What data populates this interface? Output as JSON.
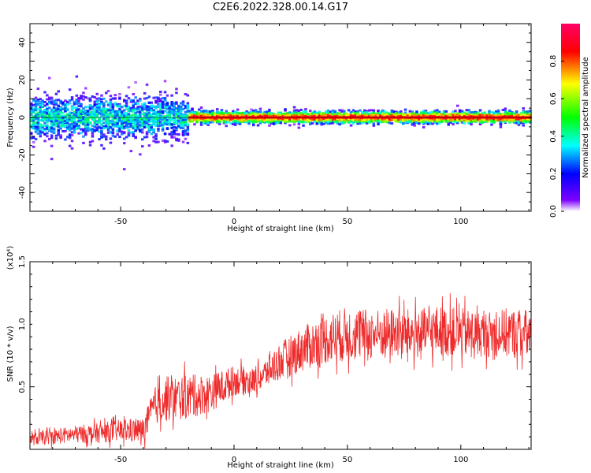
{
  "title": "C2E6.2022.328.00.14.G17",
  "colors": {
    "snr_line": "#ee2a2a",
    "axis": "#000000",
    "median_line": "#ff1a1a"
  },
  "chart_data": [
    {
      "type": "heatmap",
      "name": "frequency-spectrum",
      "xlabel": "Height of straight line (km)",
      "ylabel": "Frequency (Hz)",
      "xlim": [
        -90,
        131
      ],
      "ylim": [
        -50,
        50
      ],
      "xticks": [
        -50,
        0,
        50,
        100
      ],
      "yticks": [
        -40,
        -20,
        0,
        20,
        40
      ],
      "xtick_labels": [
        "-50",
        "0",
        "50",
        "100"
      ],
      "ytick_labels": [
        "-40",
        "-20",
        "0",
        "20",
        "40"
      ],
      "colorbar": {
        "label": "Normalized spectral amplitude",
        "range": [
          0,
          1
        ],
        "ticks": [
          "0.0",
          "0.2",
          "0.4",
          "0.6",
          "0.8"
        ],
        "tick_values": [
          0,
          0.2,
          0.4,
          0.6,
          0.8
        ],
        "colormap": [
          "#ffffff",
          "#7c00ff",
          "#0000ff",
          "#00ffff",
          "#00ff00",
          "#ffff00",
          "#ff0000",
          "#ff0066"
        ]
      },
      "features": [
        {
          "x_range": [
            -90,
            -20
          ],
          "center_freq_hz": 0,
          "spread_hz": 8,
          "amplitude": 0.35
        },
        {
          "x_range": [
            -20,
            131
          ],
          "center_freq_hz": 0,
          "spread_hz": 2,
          "amplitude": 0.85
        }
      ]
    },
    {
      "type": "line",
      "name": "snr",
      "xlabel": "Height of straight line (km)",
      "ylabel": "SNR (10 * v/v)",
      "y_multiplier": "(x10⁴)",
      "xlim": [
        -90,
        131
      ],
      "ylim": [
        0,
        1.5
      ],
      "xticks": [
        -50,
        0,
        50,
        100
      ],
      "xtick_labels": [
        "-50",
        "0",
        "50",
        "100"
      ],
      "yticks": [
        0.5,
        1.0,
        1.5
      ],
      "ytick_labels": [
        "0.5",
        "1.0",
        "1.5"
      ],
      "series": [
        {
          "x": [
            -90,
            -80,
            -70,
            -60,
            -50,
            -40,
            -35,
            -30,
            -20,
            -10,
            0,
            10,
            20,
            30,
            40,
            50,
            60,
            70,
            80,
            90,
            100,
            110,
            120,
            131
          ],
          "values": [
            0.08,
            0.1,
            0.12,
            0.13,
            0.15,
            0.15,
            0.35,
            0.4,
            0.42,
            0.45,
            0.55,
            0.55,
            0.7,
            0.8,
            0.88,
            0.92,
            0.92,
            0.93,
            0.92,
            0.95,
            0.93,
            0.92,
            0.93,
            0.92
          ],
          "noise": [
            0.05,
            0.06,
            0.07,
            0.08,
            0.09,
            0.1,
            0.15,
            0.18,
            0.18,
            0.15,
            0.12,
            0.1,
            0.15,
            0.18,
            0.2,
            0.22,
            0.2,
            0.2,
            0.2,
            0.2,
            0.2,
            0.18,
            0.2,
            0.2
          ]
        }
      ]
    }
  ]
}
